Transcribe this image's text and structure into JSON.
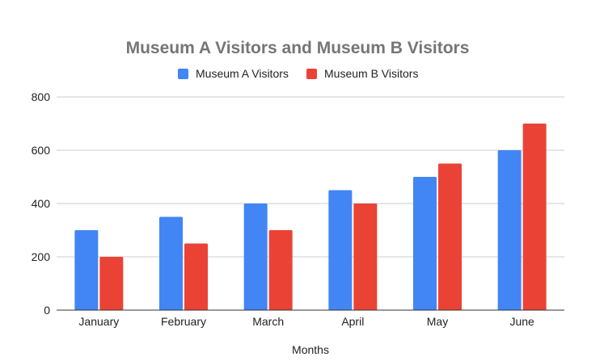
{
  "chart_data": {
    "type": "bar",
    "title": "Museum A Visitors and Museum B Visitors",
    "xlabel": "Months",
    "ylabel": "",
    "categories": [
      "January",
      "February",
      "March",
      "April",
      "May",
      "June"
    ],
    "series": [
      {
        "name": "Museum A Visitors",
        "color": "#4285f4",
        "values": [
          300,
          350,
          400,
          450,
          500,
          600
        ]
      },
      {
        "name": "Museum B Visitors",
        "color": "#ea4335",
        "values": [
          200,
          250,
          300,
          400,
          550,
          700
        ]
      }
    ],
    "ylim": [
      0,
      800
    ],
    "yticks": [
      0,
      200,
      400,
      600,
      800
    ],
    "grid": true,
    "legend_position": "top"
  }
}
